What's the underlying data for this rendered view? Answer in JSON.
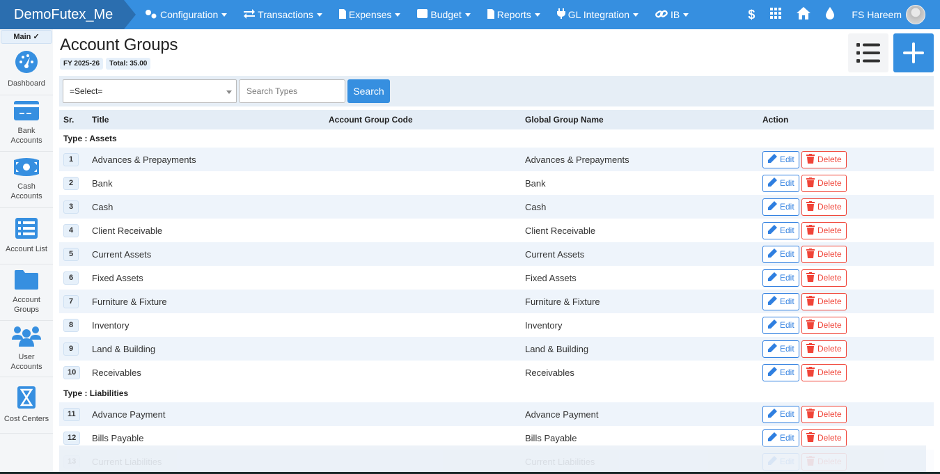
{
  "app": {
    "title": "DemoFutex_Me",
    "user": "FS Hareem"
  },
  "nav": [
    {
      "label": "Configuration",
      "icon": "cogs-icon"
    },
    {
      "label": "Transactions",
      "icon": "exchange-icon"
    },
    {
      "label": "Expenses",
      "icon": "file-icon"
    },
    {
      "label": "Budget",
      "icon": "wallet-icon"
    },
    {
      "label": "Reports",
      "icon": "file-icon"
    },
    {
      "label": "GL Integration",
      "icon": "plug-icon"
    },
    {
      "label": "IB",
      "icon": "link-icon"
    }
  ],
  "top_icons": {
    "dollar": "$"
  },
  "sidebar": {
    "main_label": "Main ✓",
    "items": [
      {
        "label": "Dashboard",
        "icon": "dashboard-icon"
      },
      {
        "label": "Bank Accounts",
        "icon": "credit-card-icon"
      },
      {
        "label": "Cash Accounts",
        "icon": "money-bill-icon"
      },
      {
        "label": "Account List",
        "icon": "list-icon"
      },
      {
        "label": "Account Groups",
        "icon": "folder-icon"
      },
      {
        "label": "User Accounts",
        "icon": "users-icon"
      },
      {
        "label": "Cost Centers",
        "icon": "hourglass-icon"
      }
    ]
  },
  "page": {
    "title": "Account Groups",
    "fy": "FY 2025-26",
    "total": "Total: 35.00"
  },
  "filter": {
    "select_value": "=Select=",
    "search_placeholder": "Search Types",
    "search_label": "Search"
  },
  "table": {
    "headers": {
      "sr": "Sr.",
      "title": "Title",
      "code": "Account Group Code",
      "global": "Global Group Name",
      "action": "Action"
    },
    "edit_label": "Edit",
    "delete_label": "Delete",
    "groups": [
      {
        "type": "Type : Assets",
        "rows": [
          {
            "sr": "1",
            "title": "Advances & Prepayments",
            "code": "",
            "global": "Advances & Prepayments"
          },
          {
            "sr": "2",
            "title": "Bank",
            "code": "",
            "global": "Bank"
          },
          {
            "sr": "3",
            "title": "Cash",
            "code": "",
            "global": "Cash"
          },
          {
            "sr": "4",
            "title": "Client Receivable",
            "code": "",
            "global": "Client Receivable"
          },
          {
            "sr": "5",
            "title": "Current Assets",
            "code": "",
            "global": "Current Assets"
          },
          {
            "sr": "6",
            "title": "Fixed Assets",
            "code": "",
            "global": "Fixed Assets"
          },
          {
            "sr": "7",
            "title": "Furniture & Fixture",
            "code": "",
            "global": "Furniture & Fixture"
          },
          {
            "sr": "8",
            "title": "Inventory",
            "code": "",
            "global": "Inventory"
          },
          {
            "sr": "9",
            "title": "Land & Building",
            "code": "",
            "global": "Land & Building"
          },
          {
            "sr": "10",
            "title": "Receivables",
            "code": "",
            "global": "Receivables"
          }
        ]
      },
      {
        "type": "Type : Liabilities",
        "rows": [
          {
            "sr": "11",
            "title": "Advance Payment",
            "code": "",
            "global": "Advance Payment"
          },
          {
            "sr": "12",
            "title": "Bills Payable",
            "code": "",
            "global": "Bills Payable"
          },
          {
            "sr": "13",
            "title": "Current Liabilities",
            "code": "",
            "global": "Current Liabilities"
          }
        ]
      }
    ]
  },
  "colors": {
    "primary": "#368fe0",
    "brand_dark": "#2b6eaf",
    "danger": "#f04438",
    "row_alt": "#eef4fb"
  }
}
